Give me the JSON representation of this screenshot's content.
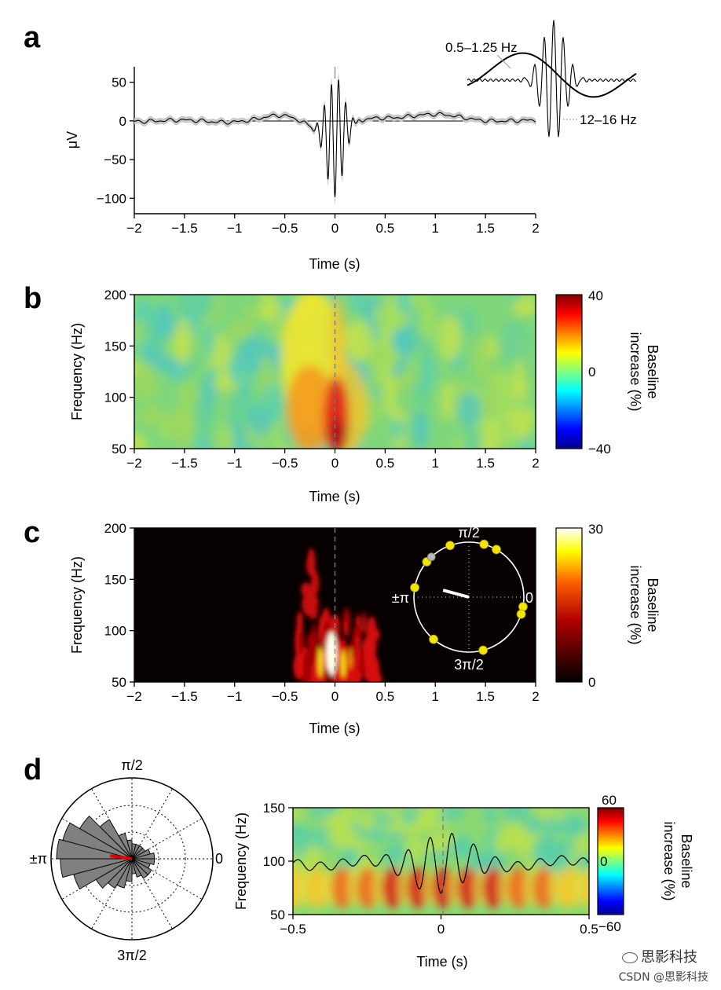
{
  "panel_labels": [
    "a",
    "b",
    "c",
    "d"
  ],
  "chart_data": [
    {
      "id": "a",
      "type": "line",
      "xlabel": "Time (s)",
      "ylabel": "μV",
      "xlim": [
        -2,
        2
      ],
      "ylim": [
        -120,
        70
      ],
      "xticks": [
        "−2",
        "−1.5",
        "−1",
        "−0.5",
        "0",
        "0.5",
        "1",
        "1.5",
        "2"
      ],
      "yticks": [
        "50",
        "0",
        "−50",
        "−100"
      ],
      "ytick_values": [
        50,
        0,
        -50,
        -100
      ],
      "series": [
        {
          "name": "Averaged trace",
          "peak_min": -100,
          "peak_max": 50,
          "center": 0
        }
      ],
      "inset": {
        "legend": [
          "0.5–1.25 Hz",
          "12–16 Hz"
        ]
      }
    },
    {
      "id": "b",
      "type": "heatmap",
      "xlabel": "Time (s)",
      "ylabel": "Frequency (Hz)",
      "xlim": [
        -2,
        2
      ],
      "ylim": [
        50,
        200
      ],
      "xticks": [
        "−2",
        "−1.5",
        "−1",
        "−0.5",
        "0",
        "0.5",
        "1",
        "1.5",
        "2"
      ],
      "yticks": [
        "200",
        "150",
        "100",
        "50"
      ],
      "ytick_values": [
        200,
        150,
        100,
        50
      ],
      "colorbar": {
        "label_line1": "Baseline",
        "label_line2": "increase (%)",
        "ticks": [
          "40",
          "0",
          "−40"
        ],
        "range": [
          -40,
          40
        ]
      }
    },
    {
      "id": "c",
      "type": "heatmap",
      "xlabel": "Time (s)",
      "ylabel": "Frequency (Hz)",
      "xlim": [
        -2,
        2
      ],
      "ylim": [
        50,
        200
      ],
      "xticks": [
        "−2",
        "−1.5",
        "−1",
        "−0.5",
        "0",
        "0.5",
        "1",
        "1.5",
        "2"
      ],
      "yticks": [
        "200",
        "150",
        "100",
        "50"
      ],
      "ytick_values": [
        200,
        150,
        100,
        50
      ],
      "colorbar": {
        "label_line1": "Baseline",
        "label_line2": "increase (%)",
        "ticks": [
          "30",
          "0"
        ],
        "range": [
          0,
          30
        ]
      },
      "polar_inset": {
        "labels": [
          "π/2",
          "0",
          "±π",
          "3π/2"
        ],
        "phase_points_deg": [
          -10,
          -18,
          60,
          74,
          110,
          140,
          170,
          230,
          285
        ],
        "gray_point_deg": 133,
        "mean_vector_deg": 165
      }
    },
    {
      "id": "d_left",
      "type": "polar_histogram",
      "labels": [
        "π/2",
        "0",
        "±π",
        "3π/2"
      ],
      "bin_width_deg": 15,
      "bins_start_deg": [
        90,
        105,
        120,
        135,
        150,
        165,
        180,
        195,
        210,
        225,
        240,
        255,
        270,
        285,
        300,
        315,
        330,
        345,
        0,
        15,
        30,
        45,
        60,
        75
      ],
      "values": [
        0.25,
        0.35,
        0.6,
        0.8,
        0.95,
        1.0,
        0.95,
        0.8,
        0.55,
        0.45,
        0.4,
        0.3,
        0.2,
        0.25,
        0.3,
        0.3,
        0.25,
        0.3,
        0.3,
        0.25,
        0.2,
        0.2,
        0.2,
        0.2
      ],
      "mean_vector_deg": 172
    },
    {
      "id": "d_right",
      "type": "heatmap",
      "xlabel": "Time (s)",
      "ylabel": "Frequency (Hz)",
      "xlim": [
        -0.5,
        0.5
      ],
      "ylim": [
        50,
        150
      ],
      "xticks": [
        "−0.5",
        "0",
        "0.5"
      ],
      "yticks": [
        "150",
        "100",
        "50"
      ],
      "ytick_values": [
        150,
        100,
        50
      ],
      "colorbar": {
        "label_line1": "Baseline",
        "label_line2": "increase (%)",
        "ticks": [
          "60",
          "0",
          "−60"
        ],
        "range": [
          -60,
          60
        ]
      }
    }
  ],
  "watermark": {
    "line1": "思影科技",
    "line2": "CSDN @思影科技"
  }
}
